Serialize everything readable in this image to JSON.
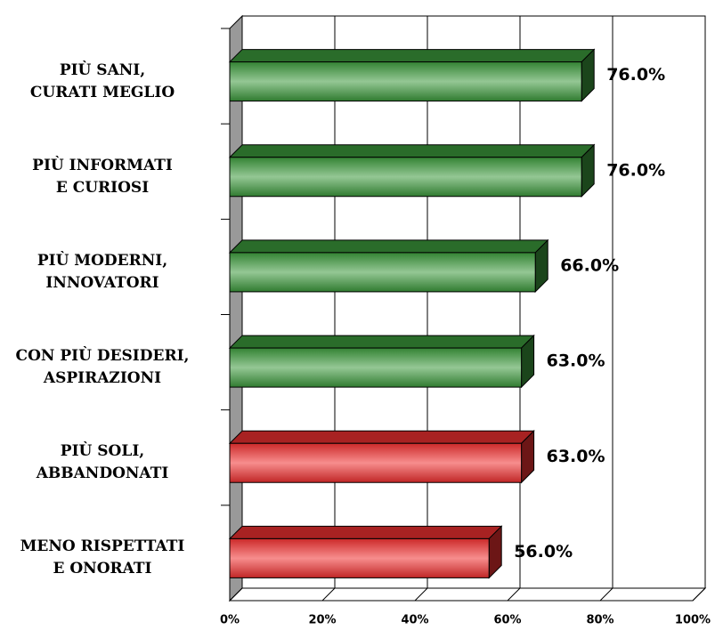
{
  "chart_data": {
    "type": "bar3d_horizontal",
    "categories": [
      "PIÙ SANI,\nCURATI MEGLIO",
      "PIÙ INFORMATI\nE CURIOSI",
      "PIÙ MODERNI,\nINNOVATORI",
      "CON PIÙ DESIDERI,\nASPIRAZIONI",
      "PIÙ SOLI,\nABBANDONATI",
      "MENO RISPETTATI\nE ONORATI"
    ],
    "values": [
      76,
      76,
      66,
      63,
      63,
      56
    ],
    "value_labels": [
      "76.0%",
      "76.0%",
      "66.0%",
      "63.0%",
      "63.0%",
      "56.0%"
    ],
    "colors": [
      "#3c9a3c",
      "#3c9a3c",
      "#3c9a3c",
      "#3c9a3c",
      "#f03030",
      "#f03030"
    ],
    "xlim": [
      0,
      100
    ],
    "xticks": [
      {
        "value": 0,
        "label": "0%"
      },
      {
        "value": 20,
        "label": "20%"
      },
      {
        "value": 40,
        "label": "40%"
      },
      {
        "value": 60,
        "label": "60%"
      },
      {
        "value": 80,
        "label": "80%"
      },
      {
        "value": 100,
        "label": "100%"
      }
    ],
    "grid": true
  }
}
